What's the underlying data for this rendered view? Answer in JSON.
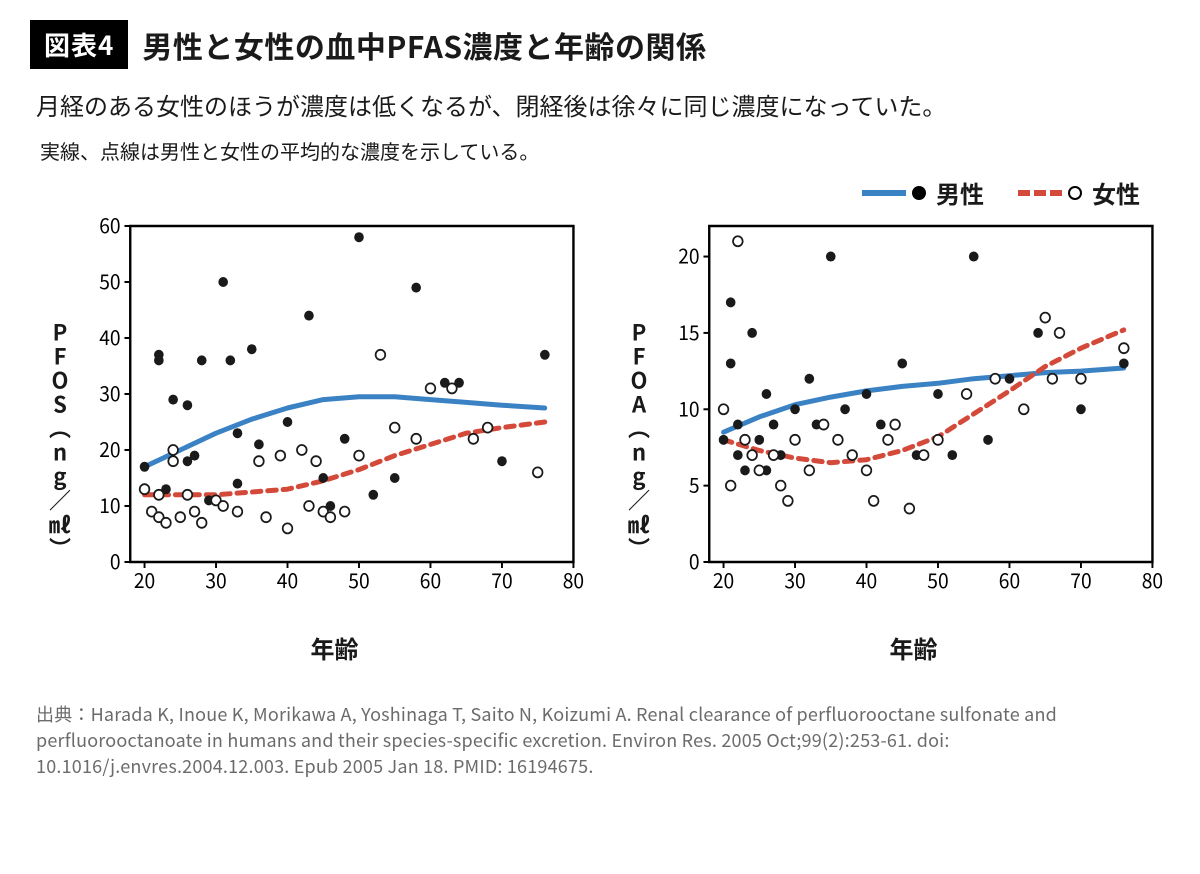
{
  "figure_badge": "図表4",
  "figure_title": "男性と女性の血中PFAS濃度と年齢の関係",
  "subtitle": "月経のある女性のほうが濃度は低くなるが、閉経後は徐々に同じ濃度になっていた。",
  "note": "実線、点線は男性と女性の平均的な濃度を示している。",
  "legend": {
    "male_label": "男性",
    "female_label": "女性",
    "male_line_color": "#3b82c4",
    "female_line_color": "#d44a3a",
    "marker_filled_color": "#000000",
    "marker_open_stroke": "#000000"
  },
  "colors": {
    "background": "#ffffff",
    "axis": "#000000",
    "male_line": "#3b82c4",
    "female_line": "#d44a3a",
    "point_fill": "#1a1a1a",
    "point_stroke": "#1a1a1a",
    "text": "#1a1a1a",
    "source_text": "#6b6b6b"
  },
  "chart_left": {
    "type": "scatter+line",
    "ylabel": "PFOS（ng／㎖）",
    "xlabel": "年齢",
    "xlim": [
      18,
      80
    ],
    "ylim": [
      0,
      60
    ],
    "xticks": [
      20,
      30,
      40,
      50,
      60,
      70,
      80
    ],
    "yticks": [
      0,
      10,
      20,
      30,
      40,
      50,
      60
    ],
    "border_width": 2.5,
    "marker_radius": 5,
    "line_width_male": 5,
    "line_width_female": 5,
    "dash_female": "9 7",
    "male_points": [
      {
        "x": 20,
        "y": 17
      },
      {
        "x": 22,
        "y": 37
      },
      {
        "x": 22,
        "y": 36
      },
      {
        "x": 23,
        "y": 13
      },
      {
        "x": 24,
        "y": 29
      },
      {
        "x": 26,
        "y": 28
      },
      {
        "x": 26,
        "y": 18
      },
      {
        "x": 27,
        "y": 19
      },
      {
        "x": 28,
        "y": 36
      },
      {
        "x": 29,
        "y": 11
      },
      {
        "x": 31,
        "y": 50
      },
      {
        "x": 32,
        "y": 36
      },
      {
        "x": 33,
        "y": 23
      },
      {
        "x": 33,
        "y": 14
      },
      {
        "x": 35,
        "y": 38
      },
      {
        "x": 36,
        "y": 21
      },
      {
        "x": 40,
        "y": 25
      },
      {
        "x": 43,
        "y": 44
      },
      {
        "x": 45,
        "y": 15
      },
      {
        "x": 46,
        "y": 10
      },
      {
        "x": 48,
        "y": 22
      },
      {
        "x": 50,
        "y": 58
      },
      {
        "x": 52,
        "y": 12
      },
      {
        "x": 55,
        "y": 15
      },
      {
        "x": 58,
        "y": 49
      },
      {
        "x": 62,
        "y": 32
      },
      {
        "x": 64,
        "y": 32
      },
      {
        "x": 70,
        "y": 18
      },
      {
        "x": 76,
        "y": 37
      }
    ],
    "female_points": [
      {
        "x": 20,
        "y": 13
      },
      {
        "x": 21,
        "y": 9
      },
      {
        "x": 22,
        "y": 8
      },
      {
        "x": 22,
        "y": 12
      },
      {
        "x": 23,
        "y": 7
      },
      {
        "x": 24,
        "y": 18
      },
      {
        "x": 24,
        "y": 20
      },
      {
        "x": 25,
        "y": 8
      },
      {
        "x": 26,
        "y": 12
      },
      {
        "x": 27,
        "y": 9
      },
      {
        "x": 28,
        "y": 7
      },
      {
        "x": 30,
        "y": 11
      },
      {
        "x": 31,
        "y": 10
      },
      {
        "x": 33,
        "y": 9
      },
      {
        "x": 36,
        "y": 18
      },
      {
        "x": 37,
        "y": 8
      },
      {
        "x": 39,
        "y": 19
      },
      {
        "x": 40,
        "y": 6
      },
      {
        "x": 42,
        "y": 20
      },
      {
        "x": 43,
        "y": 10
      },
      {
        "x": 44,
        "y": 18
      },
      {
        "x": 45,
        "y": 9
      },
      {
        "x": 46,
        "y": 8
      },
      {
        "x": 48,
        "y": 9
      },
      {
        "x": 50,
        "y": 19
      },
      {
        "x": 53,
        "y": 37
      },
      {
        "x": 55,
        "y": 24
      },
      {
        "x": 58,
        "y": 22
      },
      {
        "x": 60,
        "y": 31
      },
      {
        "x": 63,
        "y": 31
      },
      {
        "x": 66,
        "y": 22
      },
      {
        "x": 68,
        "y": 24
      },
      {
        "x": 75,
        "y": 16
      }
    ],
    "male_curve": [
      {
        "x": 20,
        "y": 17
      },
      {
        "x": 25,
        "y": 20
      },
      {
        "x": 30,
        "y": 23
      },
      {
        "x": 35,
        "y": 25.5
      },
      {
        "x": 40,
        "y": 27.5
      },
      {
        "x": 45,
        "y": 29
      },
      {
        "x": 50,
        "y": 29.5
      },
      {
        "x": 55,
        "y": 29.5
      },
      {
        "x": 60,
        "y": 29
      },
      {
        "x": 65,
        "y": 28.5
      },
      {
        "x": 70,
        "y": 28
      },
      {
        "x": 76,
        "y": 27.5
      }
    ],
    "female_curve": [
      {
        "x": 20,
        "y": 12
      },
      {
        "x": 25,
        "y": 12
      },
      {
        "x": 30,
        "y": 12
      },
      {
        "x": 35,
        "y": 12.5
      },
      {
        "x": 40,
        "y": 13
      },
      {
        "x": 45,
        "y": 14.5
      },
      {
        "x": 50,
        "y": 16.5
      },
      {
        "x": 55,
        "y": 19
      },
      {
        "x": 60,
        "y": 21
      },
      {
        "x": 65,
        "y": 23
      },
      {
        "x": 70,
        "y": 24
      },
      {
        "x": 76,
        "y": 25
      }
    ]
  },
  "chart_right": {
    "type": "scatter+line",
    "ylabel": "PFOA（ng／㎖）",
    "xlabel": "年齢",
    "xlim": [
      18,
      80
    ],
    "ylim": [
      0,
      22
    ],
    "xticks": [
      20,
      30,
      40,
      50,
      60,
      70,
      80
    ],
    "yticks": [
      0,
      5,
      10,
      15,
      20
    ],
    "border_width": 2.5,
    "marker_radius": 5,
    "line_width_male": 5,
    "line_width_female": 5,
    "dash_female": "9 7",
    "male_points": [
      {
        "x": 20,
        "y": 8
      },
      {
        "x": 21,
        "y": 13
      },
      {
        "x": 21,
        "y": 17
      },
      {
        "x": 22,
        "y": 7
      },
      {
        "x": 22,
        "y": 9
      },
      {
        "x": 23,
        "y": 6
      },
      {
        "x": 24,
        "y": 15
      },
      {
        "x": 25,
        "y": 8
      },
      {
        "x": 26,
        "y": 11
      },
      {
        "x": 26,
        "y": 6
      },
      {
        "x": 27,
        "y": 9
      },
      {
        "x": 28,
        "y": 7
      },
      {
        "x": 30,
        "y": 10
      },
      {
        "x": 32,
        "y": 12
      },
      {
        "x": 33,
        "y": 9
      },
      {
        "x": 35,
        "y": 20
      },
      {
        "x": 37,
        "y": 10
      },
      {
        "x": 40,
        "y": 11
      },
      {
        "x": 42,
        "y": 9
      },
      {
        "x": 45,
        "y": 13
      },
      {
        "x": 47,
        "y": 7
      },
      {
        "x": 50,
        "y": 11
      },
      {
        "x": 52,
        "y": 7
      },
      {
        "x": 55,
        "y": 20
      },
      {
        "x": 57,
        "y": 8
      },
      {
        "x": 60,
        "y": 12
      },
      {
        "x": 64,
        "y": 15
      },
      {
        "x": 70,
        "y": 10
      },
      {
        "x": 76,
        "y": 13
      }
    ],
    "female_points": [
      {
        "x": 20,
        "y": 10
      },
      {
        "x": 21,
        "y": 5
      },
      {
        "x": 22,
        "y": 21
      },
      {
        "x": 23,
        "y": 8
      },
      {
        "x": 24,
        "y": 7
      },
      {
        "x": 25,
        "y": 6
      },
      {
        "x": 27,
        "y": 7
      },
      {
        "x": 28,
        "y": 5
      },
      {
        "x": 29,
        "y": 4
      },
      {
        "x": 30,
        "y": 8
      },
      {
        "x": 32,
        "y": 6
      },
      {
        "x": 34,
        "y": 9
      },
      {
        "x": 36,
        "y": 8
      },
      {
        "x": 38,
        "y": 7
      },
      {
        "x": 40,
        "y": 6
      },
      {
        "x": 41,
        "y": 4
      },
      {
        "x": 43,
        "y": 8
      },
      {
        "x": 44,
        "y": 9
      },
      {
        "x": 46,
        "y": 3.5
      },
      {
        "x": 48,
        "y": 7
      },
      {
        "x": 50,
        "y": 8
      },
      {
        "x": 54,
        "y": 11
      },
      {
        "x": 58,
        "y": 12
      },
      {
        "x": 62,
        "y": 10
      },
      {
        "x": 65,
        "y": 16
      },
      {
        "x": 66,
        "y": 12
      },
      {
        "x": 67,
        "y": 15
      },
      {
        "x": 70,
        "y": 12
      },
      {
        "x": 76,
        "y": 14
      }
    ],
    "male_curve": [
      {
        "x": 20,
        "y": 8.5
      },
      {
        "x": 25,
        "y": 9.5
      },
      {
        "x": 30,
        "y": 10.3
      },
      {
        "x": 35,
        "y": 10.8
      },
      {
        "x": 40,
        "y": 11.2
      },
      {
        "x": 45,
        "y": 11.5
      },
      {
        "x": 50,
        "y": 11.7
      },
      {
        "x": 55,
        "y": 12
      },
      {
        "x": 60,
        "y": 12.2
      },
      {
        "x": 65,
        "y": 12.4
      },
      {
        "x": 70,
        "y": 12.5
      },
      {
        "x": 76,
        "y": 12.7
      }
    ],
    "female_curve": [
      {
        "x": 20,
        "y": 8
      },
      {
        "x": 25,
        "y": 7.3
      },
      {
        "x": 30,
        "y": 6.8
      },
      {
        "x": 35,
        "y": 6.5
      },
      {
        "x": 40,
        "y": 6.7
      },
      {
        "x": 45,
        "y": 7.3
      },
      {
        "x": 50,
        "y": 8.2
      },
      {
        "x": 55,
        "y": 9.7
      },
      {
        "x": 60,
        "y": 11.2
      },
      {
        "x": 65,
        "y": 12.8
      },
      {
        "x": 70,
        "y": 14
      },
      {
        "x": 76,
        "y": 15.2
      }
    ]
  },
  "source_label": "出典：",
  "source_text": "Harada K, Inoue K, Morikawa A, Yoshinaga T, Saito N, Koizumi A. Renal clearance of perfluorooctane sulfonate and perfluorooctanoate in humans and their species-specific excretion. Environ Res. 2005 Oct;99(2):253-61. doi: 10.1016/j.envres.2004.12.003. Epub 2005 Jan 18. PMID: 16194675."
}
